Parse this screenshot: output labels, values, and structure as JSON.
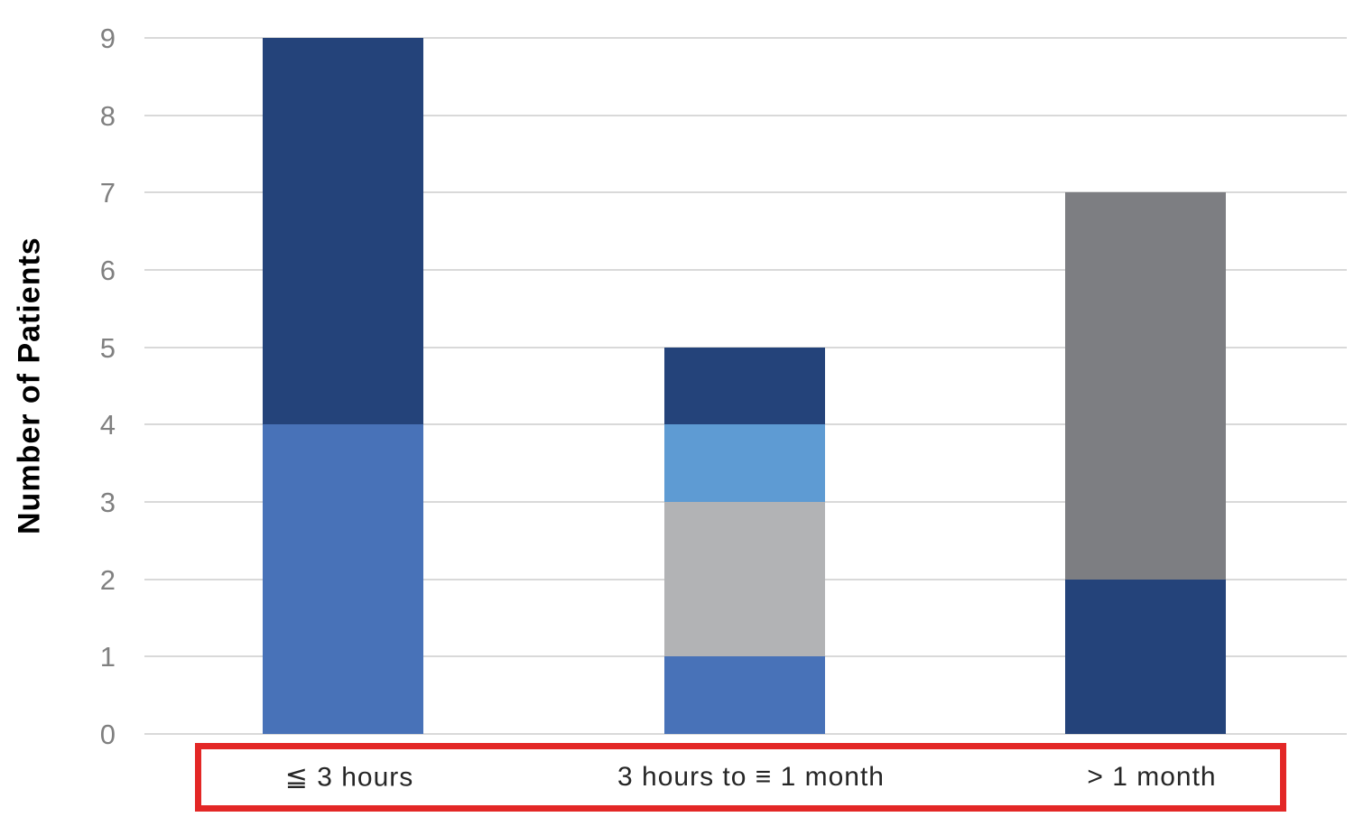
{
  "chart_data": {
    "type": "bar",
    "stacked": true,
    "title": "",
    "xlabel": "",
    "ylabel": "Number of Patients",
    "ylim": [
      0,
      9
    ],
    "yticks": [
      0,
      1,
      2,
      3,
      4,
      5,
      6,
      7,
      8,
      9
    ],
    "grid": true,
    "legend": "none",
    "categories": [
      "≦ 3 hours",
      "3 hours to ≡ 1 month",
      "> 1 month"
    ],
    "bars": [
      {
        "category": "≦ 3 hours",
        "total": 9,
        "segments_bottom_to_top": [
          {
            "color_key": "medium_blue",
            "value": 4
          },
          {
            "color_key": "dark_navy",
            "value": 5
          }
        ]
      },
      {
        "category": "3 hours to ≡ 1 month",
        "total": 5,
        "segments_bottom_to_top": [
          {
            "color_key": "medium_blue",
            "value": 1
          },
          {
            "color_key": "light_gray",
            "value": 2
          },
          {
            "color_key": "sky_blue",
            "value": 1
          },
          {
            "color_key": "dark_navy",
            "value": 1
          }
        ]
      },
      {
        "category": "> 1 month",
        "total": 7,
        "segments_bottom_to_top": [
          {
            "color_key": "dark_navy",
            "value": 2
          },
          {
            "color_key": "dark_gray",
            "value": 5
          }
        ]
      }
    ],
    "colors": {
      "dark_navy": "#24437A",
      "medium_blue": "#4872B8",
      "sky_blue": "#5E9BD3",
      "light_gray": "#B2B3B5",
      "dark_gray": "#7D7E82",
      "gridline": "#D9D9D9",
      "tick_text": "#808080",
      "label_text": "#262626",
      "highlight_red": "#E32726"
    }
  }
}
